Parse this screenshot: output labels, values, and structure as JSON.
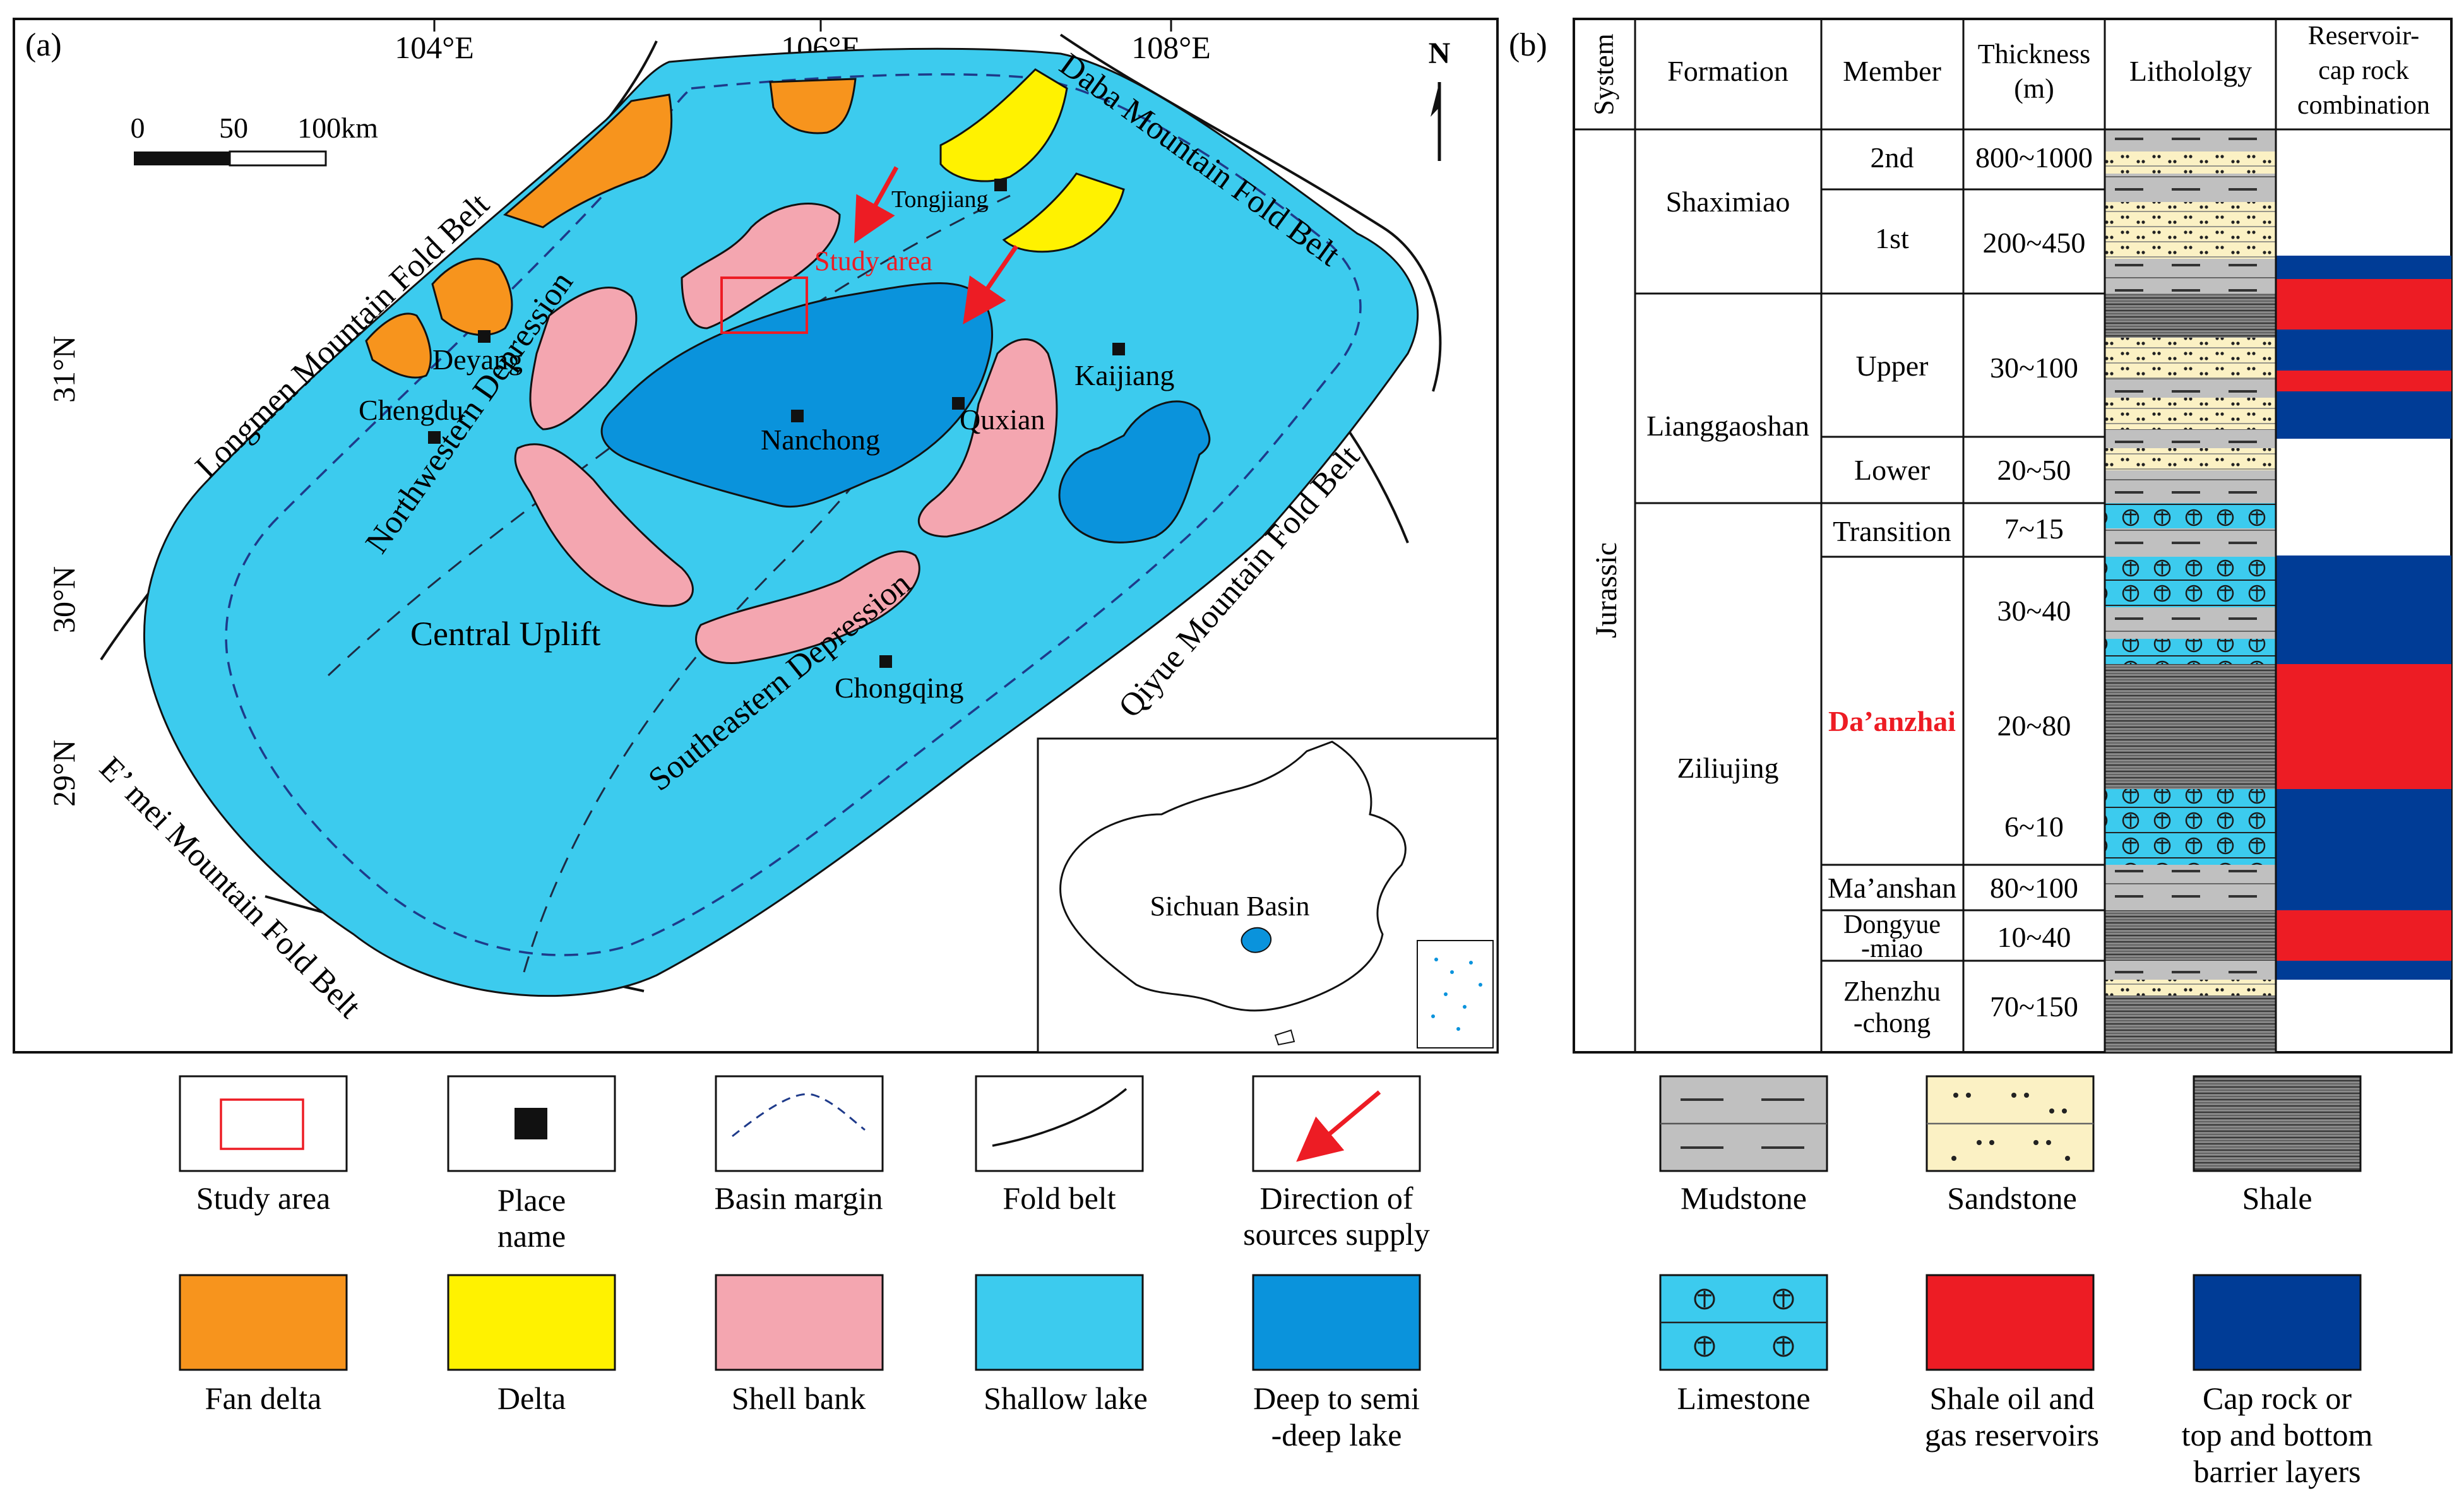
{
  "panel_a": {
    "label": "(a)",
    "longitude_labels": [
      "104°E",
      "106°E",
      "108°E"
    ],
    "latitude_labels": [
      "31°N",
      "30°N",
      "29°N"
    ],
    "scale": {
      "zero": "0",
      "fifty": "50",
      "hundred": "100km"
    },
    "north": "N",
    "fold_belts": {
      "longmen": "Longmen Mountain Fold Belt",
      "daba": "Daba Mountain Fold Belt",
      "qiyue": "Qiyue Mountain Fold Belt",
      "emei": "E’ mei Mountain Fold Belt"
    },
    "zones": {
      "northwestern": "Northwestern Depression",
      "central": "Central Uplift",
      "southeastern": "Southeastern Depression"
    },
    "places": {
      "tongjiang": "Tongjiang",
      "deyang": "Deyang",
      "chengdu": "Chengdu",
      "nanchong": "Nanchong",
      "quxian": "Quxian",
      "kaijiang": "Kaijiang",
      "chongqing": "Chongqing"
    },
    "study_area": "Study area",
    "inset_label": "Sichuan Basin",
    "colors": {
      "fan_delta": "#f7941d",
      "delta": "#fff200",
      "shell_bank": "#f4a6b0",
      "shallow_lake": "#3ccbee",
      "deep_lake": "#0a93dc",
      "red": "#ed1c24",
      "dark_blue": "#003c96"
    }
  },
  "panel_b": {
    "label": "(b)",
    "headers": {
      "system": "System",
      "formation": "Formation",
      "member": "Member",
      "thickness_1": "Thickness",
      "thickness_2": "(m)",
      "lithology": "Lithololgy",
      "combo_1": "Reservoir-",
      "combo_2": "cap rock",
      "combo_3": "combination"
    },
    "system": "Jurassic",
    "formations": {
      "shaximiao": "Shaximiao",
      "lianggaoshan": "Lianggaoshan",
      "ziliujing": "Ziliujing"
    },
    "members": {
      "m2nd": "2nd",
      "m1st": "1st",
      "upper": "Upper",
      "lower": "Lower",
      "transition": "Transition",
      "daanzhai": "Da’anzhai",
      "maanshan": "Ma’anshan",
      "dongyue_1": "Dongyue",
      "dongyue_2": "-miao",
      "zhenzhu_1": "Zhenzhu",
      "zhenzhu_2": "-chong"
    },
    "thickness": {
      "m2nd": "800~1000",
      "m1st": "200~450",
      "upper": "30~100",
      "lower": "20~50",
      "transition": "7~15",
      "da1": "30~40",
      "da2": "20~80",
      "da3": "6~10",
      "maanshan": "80~100",
      "dongyue": "10~40",
      "zhenzhu": "70~150"
    }
  },
  "legend": {
    "study_area": "Study area",
    "place_1": "Place",
    "place_2": "name",
    "basin_margin": "Basin margin",
    "fold_belt": "Fold belt",
    "direction_1": "Direction of",
    "direction_2": "sources supply",
    "fan_delta": "Fan delta",
    "delta": "Delta",
    "shell_bank": "Shell bank",
    "shallow_lake": "Shallow lake",
    "deep_lake_1": "Deep to semi",
    "deep_lake_2": "-deep lake",
    "mudstone": "Mudstone",
    "sandstone": "Sandstone",
    "shale": "Shale",
    "limestone": "Limestone",
    "reservoir_1": "Shale oil and",
    "reservoir_2": "gas reservoirs",
    "cap_1": "Cap rock or",
    "cap_2": "top and bottom",
    "cap_3": "barrier layers"
  }
}
